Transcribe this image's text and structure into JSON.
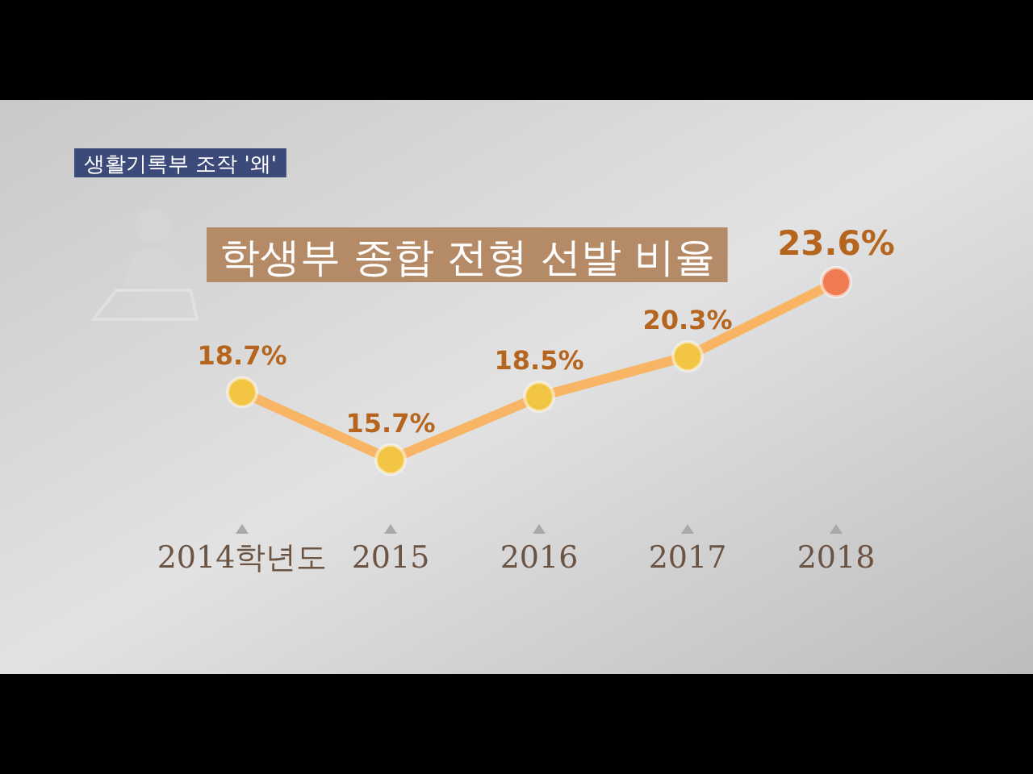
{
  "chart_data": {
    "type": "line",
    "title": "학생부 종합 전형 선발 비율",
    "annotations": [
      "생활기록부 조작 '왜'"
    ],
    "categories": [
      "2014학년도",
      "2015",
      "2016",
      "2017",
      "2018"
    ],
    "series": [
      {
        "color": "#f7b565",
        "colors": [
          "#f3c545",
          "#f3c545",
          "#f3c545",
          "#f3c545",
          "#ee7b52"
        ],
        "values": [
          18.7,
          15.7,
          18.5,
          20.3,
          23.6
        ],
        "value_labels": [
          "18.7%",
          "15.7%",
          "18.5%",
          "20.3%",
          "23.6%"
        ]
      }
    ],
    "marker": "circle",
    "line_style": "solid"
  }
}
